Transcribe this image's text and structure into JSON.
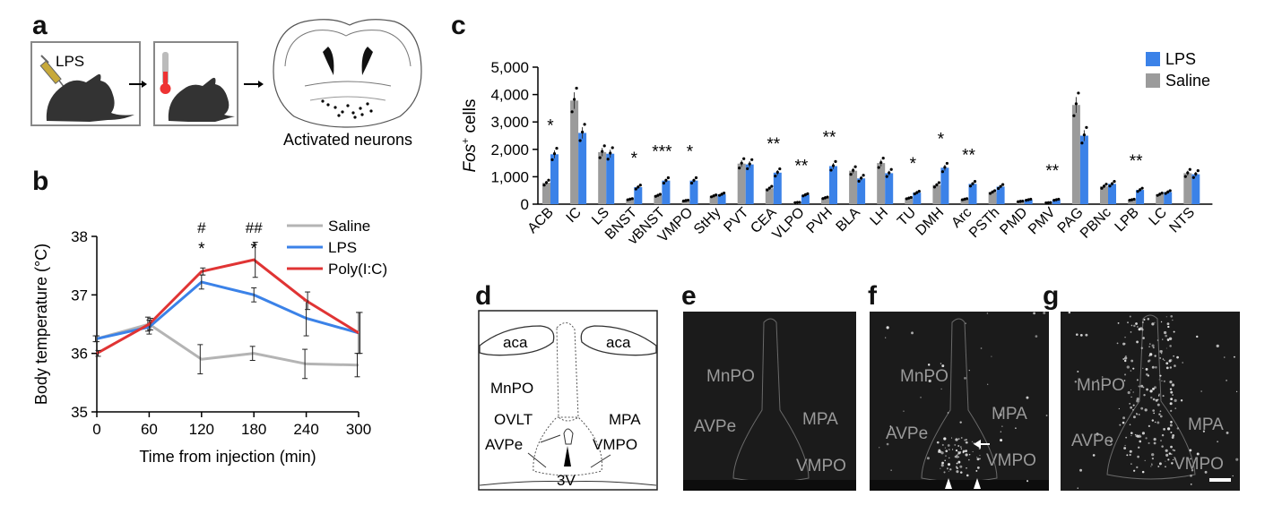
{
  "panels": {
    "a": "a",
    "b": "b",
    "c": "c",
    "d": "d",
    "e": "e",
    "f": "f",
    "g": "g"
  },
  "panel_a": {
    "injection_label": "LPS",
    "caption": "Activated neurons"
  },
  "chart_data": [
    {
      "id": "b",
      "type": "line",
      "x": [
        0,
        60,
        120,
        180,
        240,
        300
      ],
      "xlabel": "Time from injection (min)",
      "ylabel": "Body temperature (°C)",
      "xlim": [
        0,
        300
      ],
      "ylim": [
        35,
        38
      ],
      "yticks": [
        35,
        36,
        37,
        38
      ],
      "xticks": [
        0,
        60,
        120,
        180,
        240,
        300
      ],
      "series": [
        {
          "name": "Saline",
          "color": "#b4b4b4",
          "values": [
            36.25,
            36.5,
            35.9,
            36.0,
            35.82,
            35.8
          ],
          "err": [
            0.05,
            0.12,
            0.25,
            0.12,
            0.25,
            0.2
          ]
        },
        {
          "name": "LPS",
          "color": "#3b82e8",
          "values": [
            36.25,
            36.45,
            37.22,
            37.0,
            36.6,
            36.35
          ],
          "err": [
            0.05,
            0.12,
            0.12,
            0.12,
            0.3,
            0.35
          ]
        },
        {
          "name": "Poly(I:C)",
          "color": "#e03434",
          "values": [
            36.0,
            36.5,
            37.4,
            37.6,
            36.9,
            36.35
          ],
          "err": [
            0.05,
            0.1,
            0.06,
            0.3,
            0.15,
            0.35
          ]
        }
      ],
      "annotations": [
        {
          "x": 120,
          "top": "#",
          "bottom": "*"
        },
        {
          "x": 180,
          "top": "##",
          "bottom": "*"
        }
      ]
    },
    {
      "id": "c",
      "type": "bar",
      "ylabel_main": "Fos",
      "ylabel_sup": "+",
      "ylabel_rest": " cells",
      "ylim": [
        0,
        5000
      ],
      "yticks": [
        "0",
        "1,000",
        "2,000",
        "3,000",
        "4,000",
        "5,000"
      ],
      "categories": [
        "ACB",
        "IC",
        "LS",
        "BNST",
        "vBNST",
        "VMPO",
        "StHy",
        "PVT",
        "CEA",
        "VLPO",
        "PVH",
        "BLA",
        "LH",
        "TU",
        "DMH",
        "Arc",
        "PSTh",
        "PMD",
        "PMV",
        "PAG",
        "PBNc",
        "LPB",
        "LC",
        "NTS"
      ],
      "series": [
        {
          "name": "Saline",
          "color": "#9b9b9b",
          "values": [
            780,
            3780,
            1900,
            180,
            320,
            130,
            300,
            1480,
            580,
            60,
            230,
            1220,
            1500,
            220,
            700,
            180,
            440,
            100,
            50,
            3620,
            650,
            160,
            360,
            1130
          ]
        },
        {
          "name": "LPS",
          "color": "#3b82e8",
          "values": [
            1820,
            2600,
            1840,
            620,
            860,
            860,
            360,
            1450,
            1150,
            340,
            1390,
            940,
            1130,
            420,
            1330,
            740,
            640,
            160,
            160,
            2500,
            740,
            520,
            440,
            1090
          ]
        }
      ],
      "significance": [
        "*",
        "",
        "",
        "*",
        "***",
        "*",
        "",
        "",
        "**",
        "**",
        "**",
        "",
        "",
        "*",
        "*",
        "**",
        "",
        "",
        "**",
        "",
        "",
        "**",
        "",
        ""
      ],
      "legend": [
        "LPS",
        "Saline"
      ]
    }
  ],
  "panel_d": {
    "aca_left": "aca",
    "aca_right": "aca",
    "mnpo": "MnPO",
    "ovlt": "OVLT",
    "avpe": "AVPe",
    "mpa": "MPA",
    "vmpo": "VMPO",
    "third_v": "3V"
  },
  "panel_e": {
    "mnpo": "MnPO",
    "avpe": "AVPe",
    "mpa": "MPA",
    "vmpo": "VMPO"
  },
  "panel_f": {
    "mnpo": "MnPO",
    "avpe": "AVPe",
    "mpa": "MPA",
    "vmpo": "VMPO"
  },
  "panel_g": {
    "mnpo": "MnPO",
    "avpe": "AVPe",
    "mpa": "MPA",
    "vmpo": "VMPO"
  }
}
